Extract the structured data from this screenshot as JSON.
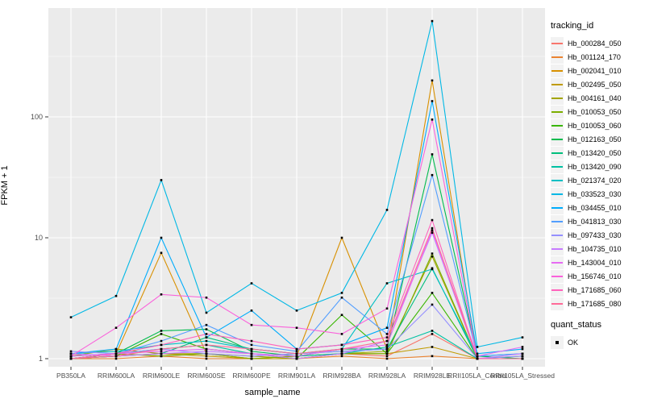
{
  "figure": {
    "bg_color": "#FFFFFF",
    "panel_bg_color": "#EBEBEB",
    "grid_color": "#FFFFFF",
    "tick_label_color": "#4D4D4D",
    "marker_color": "#000000"
  },
  "axes": {
    "x_title": "sample_name",
    "y_title": "FPKM + 1",
    "y_tick_labels": [
      "1",
      "10",
      "100"
    ]
  },
  "legend": {
    "tracking_title": "tracking_id",
    "quant_title": "quant_status",
    "quant_items": [
      {
        "label": "OK",
        "marker": "black-square"
      }
    ]
  },
  "chart_data": {
    "type": "line",
    "y_scale": "log10",
    "ylim": [
      0.86,
      790
    ],
    "y_major_breaks": [
      1,
      10,
      100
    ],
    "y_minor_breaks": [
      3.162,
      31.62,
      316.2
    ],
    "grid": "white-on-gray",
    "legend_position": "right",
    "title": "",
    "xlabel": "sample_name",
    "ylabel": "FPKM + 1",
    "point_legend": {
      "title": "quant_status",
      "label": "OK"
    },
    "series_legend_title": "tracking_id",
    "categories": [
      "PB350LA",
      "RRIM600LA",
      "RRIM600LE",
      "RRIM600SE",
      "RRIM600PE",
      "RRIM901LA",
      "RRIM928BA",
      "RRIM928LA",
      "RRIM928LE",
      "RRII105LA_Control",
      "RRII105LA_Stressed"
    ],
    "series": [
      {
        "name": "Hb_000284_050",
        "color": "#F8766D",
        "values": [
          1.05,
          1.1,
          1.05,
          1.1,
          1.0,
          1.0,
          1.1,
          1.05,
          1.6,
          1.0,
          1.0
        ]
      },
      {
        "name": "Hb_001124_170",
        "color": "#EA8331",
        "values": [
          1.0,
          1.0,
          1.05,
          1.0,
          1.0,
          1.0,
          1.05,
          1.0,
          1.05,
          1.0,
          1.0
        ]
      },
      {
        "name": "Hb_002041_010",
        "color": "#D89000",
        "values": [
          1.0,
          1.1,
          7.5,
          1.1,
          1.0,
          1.05,
          10.0,
          1.2,
          200,
          1.0,
          1.0
        ]
      },
      {
        "name": "Hb_002495_050",
        "color": "#C09B00",
        "values": [
          1.0,
          1.05,
          1.1,
          1.05,
          1.0,
          1.0,
          1.1,
          1.1,
          1.25,
          1.0,
          1.0
        ]
      },
      {
        "name": "Hb_004161_040",
        "color": "#A3A500",
        "values": [
          1.05,
          1.2,
          1.1,
          1.1,
          1.05,
          1.0,
          1.1,
          1.15,
          7.0,
          1.0,
          1.0
        ]
      },
      {
        "name": "Hb_010053_050",
        "color": "#7CAE00",
        "values": [
          1.0,
          1.1,
          1.05,
          1.1,
          1.0,
          1.05,
          1.1,
          1.1,
          7.4,
          1.0,
          1.05
        ]
      },
      {
        "name": "Hb_010053_060",
        "color": "#39B600",
        "values": [
          1.0,
          1.05,
          1.6,
          1.2,
          1.1,
          1.0,
          2.3,
          1.1,
          3.5,
          1.0,
          1.0
        ]
      },
      {
        "name": "Hb_012163_050",
        "color": "#00BB4E",
        "values": [
          1.0,
          1.1,
          1.7,
          1.75,
          1.15,
          1.05,
          1.2,
          1.2,
          49,
          1.05,
          1.0
        ]
      },
      {
        "name": "Hb_013420_050",
        "color": "#00BF7D",
        "values": [
          1.0,
          1.05,
          1.1,
          1.5,
          1.2,
          1.1,
          1.15,
          1.2,
          5.6,
          1.0,
          1.0
        ]
      },
      {
        "name": "Hb_013420_090",
        "color": "#00C1A3",
        "values": [
          1.05,
          1.1,
          1.2,
          1.3,
          1.1,
          1.05,
          1.1,
          1.25,
          1.7,
          1.0,
          1.0
        ]
      },
      {
        "name": "Hb_021374_020",
        "color": "#00BFC4",
        "values": [
          1.1,
          1.15,
          1.3,
          1.4,
          1.2,
          1.1,
          1.2,
          4.2,
          5.5,
          1.05,
          1.1
        ]
      },
      {
        "name": "Hb_033523_030",
        "color": "#00B8E5",
        "values": [
          2.2,
          3.3,
          30,
          2.4,
          4.2,
          2.5,
          3.5,
          17,
          620,
          1.25,
          1.5
        ]
      },
      {
        "name": "Hb_034455_010",
        "color": "#00ACFC",
        "values": [
          1.1,
          1.2,
          10,
          1.5,
          2.5,
          1.2,
          1.3,
          1.8,
          135,
          1.1,
          1.2
        ]
      },
      {
        "name": "Hb_041813_030",
        "color": "#529EFF",
        "values": [
          1.05,
          1.1,
          1.4,
          1.9,
          1.3,
          1.15,
          3.2,
          1.6,
          33,
          1.05,
          1.1
        ]
      },
      {
        "name": "Hb_097433_030",
        "color": "#9590FF",
        "values": [
          1.15,
          1.1,
          1.2,
          1.1,
          1.05,
          1.1,
          1.15,
          1.2,
          2.8,
          1.0,
          1.05
        ]
      },
      {
        "name": "Hb_104735_010",
        "color": "#C77CFF",
        "values": [
          1.1,
          1.05,
          1.1,
          1.15,
          1.1,
          1.0,
          1.1,
          1.4,
          11,
          1.0,
          1.1
        ]
      },
      {
        "name": "Hb_143004_010",
        "color": "#E76BF3",
        "values": [
          1.05,
          1.1,
          1.15,
          1.2,
          1.1,
          1.05,
          1.2,
          1.3,
          11.5,
          1.05,
          1.25
        ]
      },
      {
        "name": "Hb_156746_010",
        "color": "#FA62DB",
        "values": [
          1.05,
          1.8,
          3.4,
          3.2,
          1.9,
          1.8,
          1.6,
          2.6,
          95,
          1.0,
          1.0
        ]
      },
      {
        "name": "Hb_171685_060",
        "color": "#FF62BC",
        "values": [
          1.0,
          1.1,
          1.3,
          1.6,
          1.4,
          1.2,
          1.3,
          1.5,
          14,
          1.0,
          1.0
        ]
      },
      {
        "name": "Hb_171685_080",
        "color": "#FF6A98",
        "values": [
          1.0,
          1.05,
          1.2,
          1.3,
          1.2,
          1.1,
          1.2,
          1.4,
          12,
          1.0,
          1.0
        ]
      }
    ]
  }
}
